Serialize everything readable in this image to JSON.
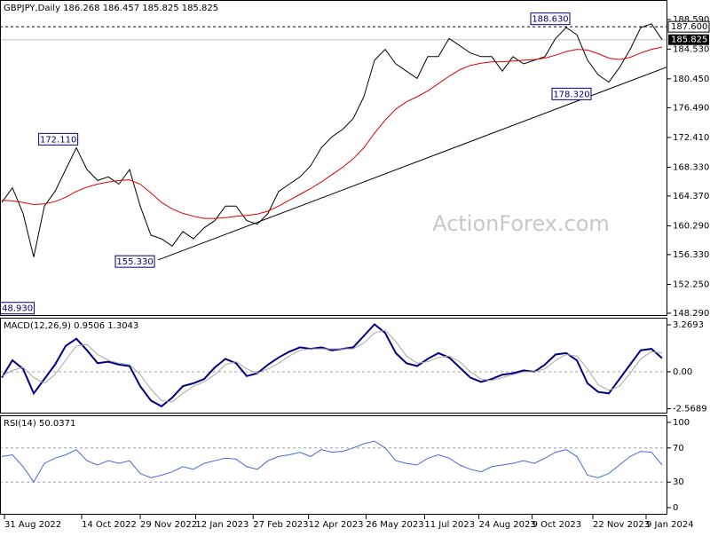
{
  "chart_data": [
    {
      "type": "line",
      "title": "GBPJPY,Daily  186.268 186.457 185.825 185.825",
      "watermark": "ActionForex.com",
      "x": [
        0,
        1,
        2,
        3,
        4,
        5,
        6,
        7,
        8,
        9,
        10,
        11,
        12,
        13,
        14,
        15,
        16,
        17,
        18,
        19,
        20,
        21,
        22,
        23,
        24,
        25,
        26,
        27,
        28,
        29,
        30,
        31,
        32,
        33,
        34,
        35,
        36,
        37,
        38,
        39,
        40,
        41,
        42,
        43,
        44,
        45,
        46,
        47,
        48,
        49,
        50,
        51,
        52,
        53,
        54,
        55,
        56,
        57,
        58,
        59,
        60,
        61,
        62
      ],
      "xlim": [
        -0.17,
        62.5
      ],
      "xticks": [
        {
          "value": 0.25,
          "label": "31 Aug 2022"
        },
        {
          "value": 7.5,
          "label": "14 Oct 2022"
        },
        {
          "value": 13,
          "label": "29 Nov 2022"
        },
        {
          "value": 18.2,
          "label": "12 Jan 2023"
        },
        {
          "value": 23.6,
          "label": "27 Feb 2023"
        },
        {
          "value": 28.8,
          "label": "12 Apr 2023"
        },
        {
          "value": 34.2,
          "label": "26 May 2023"
        },
        {
          "value": 39.7,
          "label": "11 Jul 2023"
        },
        {
          "value": 44.8,
          "label": "24 Aug 2023"
        },
        {
          "value": 49.8,
          "label": "9 Oct 2023"
        },
        {
          "value": 55.5,
          "label": "22 Nov 2023"
        },
        {
          "value": 60.5,
          "label": "9 Jan 2024"
        }
      ],
      "ylim": [
        147.92,
        191.27
      ],
      "yticks": [
        {
          "value": 188.59,
          "label": "188.590"
        },
        {
          "value": 184.53,
          "label": "184.530"
        },
        {
          "value": 180.45,
          "label": "180.450"
        },
        {
          "value": 176.49,
          "label": "176.490"
        },
        {
          "value": 172.41,
          "label": "172.410"
        },
        {
          "value": 168.33,
          "label": "168.330"
        },
        {
          "value": 164.37,
          "label": "164.370"
        },
        {
          "value": 160.29,
          "label": "160.290"
        },
        {
          "value": 156.33,
          "label": "156.330"
        },
        {
          "value": 152.25,
          "label": "152.250"
        },
        {
          "value": 148.29,
          "label": "148.290"
        }
      ],
      "series": [
        {
          "color": "#000000",
          "values": [
            163.5,
            165.5,
            162,
            156,
            163,
            165,
            168,
            171,
            168,
            166.5,
            167,
            166,
            168,
            163,
            159,
            158.5,
            157.5,
            159.5,
            158.5,
            160,
            161,
            163,
            163,
            161,
            160.5,
            162,
            165,
            166,
            167,
            168.5,
            171,
            172.5,
            173.5,
            175,
            178,
            183,
            184.5,
            182.5,
            181.5,
            180.5,
            183.5,
            183.5,
            186,
            185,
            184,
            183.5,
            183.5,
            181.5,
            183.5,
            182.5,
            183,
            183.5,
            186,
            187.5,
            186.5,
            183,
            181,
            180,
            182,
            184.5,
            187.5,
            188,
            185.825
          ]
        },
        {
          "color": "#e00000",
          "values": [
            163.8,
            163.7,
            163.5,
            163.2,
            163.3,
            163.6,
            164.2,
            165,
            165.6,
            166,
            166.3,
            166.5,
            166.6,
            166,
            164.8,
            163.5,
            162.6,
            162,
            161.6,
            161.3,
            161.3,
            161.4,
            161.6,
            161.7,
            161.9,
            162.3,
            163,
            163.8,
            164.6,
            165.4,
            166.3,
            167.3,
            168.3,
            169.5,
            171,
            173,
            174.8,
            176.3,
            177.3,
            178,
            178.8,
            179.8,
            180.8,
            181.7,
            182.3,
            182.6,
            182.8,
            182.8,
            182.9,
            183,
            183.1,
            183.3,
            183.7,
            184.2,
            184.5,
            184.4,
            183.9,
            183.3,
            183.1,
            183.4,
            184,
            184.5,
            184.8
          ]
        }
      ],
      "trendline": {
        "x": [
          14.67,
          62.5
        ],
        "y": [
          155.6,
          182.1
        ]
      },
      "hline": {
        "value": 187.6,
        "label": "187.600"
      },
      "last": {
        "value": 185.825,
        "label": "185.825"
      },
      "annotations": [
        {
          "x": 53.5,
          "value": 188.63,
          "label": "188.630"
        },
        {
          "x": 7.3,
          "value": 172.11,
          "label": "172.110"
        },
        {
          "x": 14.5,
          "value": 155.33,
          "label": "155.330"
        },
        {
          "x": 55.5,
          "value": 178.32,
          "label": "178.320"
        },
        {
          "x": 3.2,
          "value": 148.93,
          "label": "148.930"
        }
      ]
    },
    {
      "type": "line",
      "title": "MACD(12,26,9) 0.9506 1.3043",
      "x": [
        0,
        1,
        2,
        3,
        4,
        5,
        6,
        7,
        8,
        9,
        10,
        11,
        12,
        13,
        14,
        15,
        16,
        17,
        18,
        19,
        20,
        21,
        22,
        23,
        24,
        25,
        26,
        27,
        28,
        29,
        30,
        31,
        32,
        33,
        34,
        35,
        36,
        37,
        38,
        39,
        40,
        41,
        42,
        43,
        44,
        45,
        46,
        47,
        48,
        49,
        50,
        51,
        52,
        53,
        54,
        55,
        56,
        57,
        58,
        59,
        60,
        61,
        62
      ],
      "xlim": [
        -0.17,
        62.5
      ],
      "ylim": [
        -2.84,
        3.64
      ],
      "yticks": [
        3.2693,
        {
          "value": 0,
          "label": "0.00"
        },
        -2.5689
      ],
      "levels": [
        0
      ],
      "series": [
        {
          "color": "#000080",
          "values": [
            -0.4,
            0.8,
            0.2,
            -1.5,
            -0.5,
            0.5,
            1.8,
            2.3,
            1.5,
            0.6,
            0.7,
            0.5,
            0.4,
            -1.0,
            -2.0,
            -2.4,
            -1.8,
            -1.0,
            -0.8,
            -0.5,
            0.3,
            0.9,
            0.6,
            -0.3,
            -0.1,
            0.5,
            1.0,
            1.4,
            1.7,
            1.6,
            1.7,
            1.5,
            1.6,
            1.7,
            2.5,
            3.3,
            2.7,
            1.3,
            0.6,
            0.4,
            0.9,
            1.3,
            1.0,
            0.3,
            -0.4,
            -0.7,
            -0.5,
            -0.2,
            -0.1,
            0.1,
            0.0,
            0.5,
            1.2,
            1.3,
            0.8,
            -0.8,
            -1.4,
            -1.5,
            -0.5,
            0.5,
            1.5,
            1.6,
            0.9506
          ]
        },
        {
          "color": "#a8a8a8",
          "values": [
            -0.3,
            0.1,
            0.3,
            -0.4,
            -0.8,
            -0.2,
            0.8,
            1.8,
            1.9,
            1.2,
            0.8,
            0.6,
            0.5,
            -0.2,
            -1.2,
            -2.0,
            -2.1,
            -1.5,
            -1.0,
            -0.7,
            -0.2,
            0.5,
            0.7,
            0.2,
            -0.1,
            0.2,
            0.6,
            1.1,
            1.5,
            1.6,
            1.6,
            1.6,
            1.6,
            1.6,
            2.0,
            2.7,
            2.9,
            2.1,
            1.1,
            0.6,
            0.7,
            1.0,
            1.1,
            0.7,
            0.0,
            -0.5,
            -0.6,
            -0.4,
            -0.2,
            0.0,
            0.0,
            0.2,
            0.8,
            1.2,
            1.1,
            0.2,
            -0.9,
            -1.3,
            -1.0,
            -0.1,
            0.9,
            1.4,
            1.3043
          ]
        }
      ]
    },
    {
      "type": "line",
      "title": "RSI(14) 50.0371",
      "x": [
        0,
        1,
        2,
        3,
        4,
        5,
        6,
        7,
        8,
        9,
        10,
        11,
        12,
        13,
        14,
        15,
        16,
        17,
        18,
        19,
        20,
        21,
        22,
        23,
        24,
        25,
        26,
        27,
        28,
        29,
        30,
        31,
        32,
        33,
        34,
        35,
        36,
        37,
        38,
        39,
        40,
        41,
        42,
        43,
        44,
        45,
        46,
        47,
        48,
        49,
        50,
        51,
        52,
        53,
        54,
        55,
        56,
        57,
        58,
        59,
        60,
        61,
        62
      ],
      "xlim": [
        -0.17,
        62.5
      ],
      "ylim": [
        -8.3,
        108.3
      ],
      "yticks": [
        100,
        70,
        30,
        0
      ],
      "levels": [
        70,
        30
      ],
      "series": [
        {
          "color": "#4169e1",
          "values": [
            60,
            62,
            48,
            30,
            52,
            58,
            62,
            68,
            55,
            50,
            55,
            52,
            55,
            40,
            35,
            38,
            42,
            48,
            45,
            52,
            55,
            58,
            57,
            48,
            45,
            55,
            60,
            62,
            65,
            60,
            68,
            65,
            66,
            70,
            75,
            78,
            70,
            55,
            52,
            50,
            58,
            62,
            58,
            50,
            45,
            42,
            48,
            50,
            52,
            55,
            52,
            58,
            65,
            68,
            60,
            38,
            35,
            40,
            50,
            60,
            66,
            65,
            50.0371
          ]
        }
      ]
    }
  ]
}
